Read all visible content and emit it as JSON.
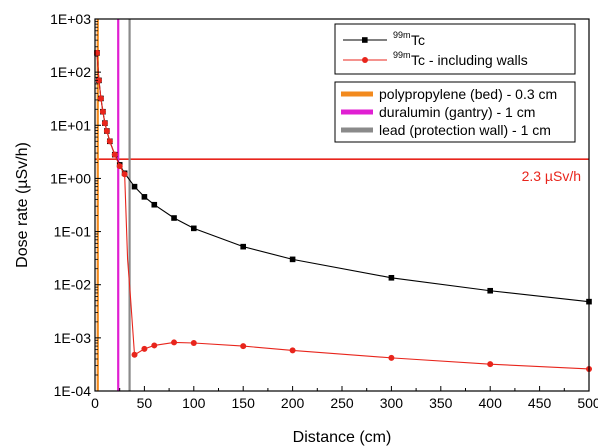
{
  "chart_data": {
    "type": "line",
    "xlabel": "Distance (cm)",
    "ylabel": "Dose rate  (µSv/h)",
    "xlim": [
      0,
      500
    ],
    "ylim": [
      0.0001,
      1000
    ],
    "yscale": "log",
    "x_ticks": [
      "0",
      "50",
      "100",
      "150",
      "200",
      "250",
      "300",
      "350",
      "400",
      "450",
      "500"
    ],
    "y_ticks": [
      "1E-04",
      "1E-03",
      "1E-02",
      "1E-01",
      "1E+00",
      "1E+01",
      "1E+02",
      "1E+03"
    ],
    "series": [
      {
        "name_sup": "99m",
        "name_main": "Tc",
        "color": "#000000",
        "marker": "square",
        "x": [
          2,
          4,
          6,
          8,
          10,
          12,
          15,
          20,
          25,
          30,
          40,
          50,
          60,
          80,
          100,
          150,
          200,
          300,
          400,
          500
        ],
        "y": [
          230,
          70,
          32,
          18,
          11,
          7.8,
          5,
          2.8,
          1.8,
          1.25,
          0.7,
          0.45,
          0.32,
          0.18,
          0.115,
          0.052,
          0.03,
          0.0135,
          0.0077,
          0.0048
        ]
      },
      {
        "name_sup": "99m",
        "name_main": "Tc - including walls",
        "color": "#e8251c",
        "marker": "circle",
        "x": [
          2,
          4,
          6,
          8,
          10,
          12,
          15,
          20,
          25,
          30,
          33,
          36,
          40,
          50,
          60,
          80,
          100,
          150,
          200,
          300,
          400,
          500
        ],
        "y": [
          230,
          70,
          32,
          18,
          11,
          7.8,
          5,
          2.8,
          1.7,
          1.2,
          0.03,
          0.0055,
          0.00048,
          0.00062,
          0.00072,
          0.00082,
          0.0008,
          0.0007,
          0.00058,
          0.00042,
          0.00032,
          0.00026
        ],
        "markers_at": [
          0,
          1,
          2,
          3,
          4,
          5,
          6,
          7,
          8,
          9,
          12,
          13,
          14,
          15,
          16,
          17,
          18,
          19,
          20,
          21
        ]
      }
    ],
    "vertical_lines": [
      {
        "x": 2.8,
        "color": "#f28a1e",
        "label": "polypropylene (bed) - 0.3 cm"
      },
      {
        "x": 23.5,
        "color": "#e01fd2",
        "label": "duralumin (gantry) - 1 cm"
      },
      {
        "x": 35,
        "color": "#8a8a8a",
        "label": "lead (protection wall) - 1 cm"
      }
    ],
    "horizontal_line": {
      "y": 2.3,
      "color": "#e8251c",
      "label": "2.3 µSv/h"
    }
  }
}
